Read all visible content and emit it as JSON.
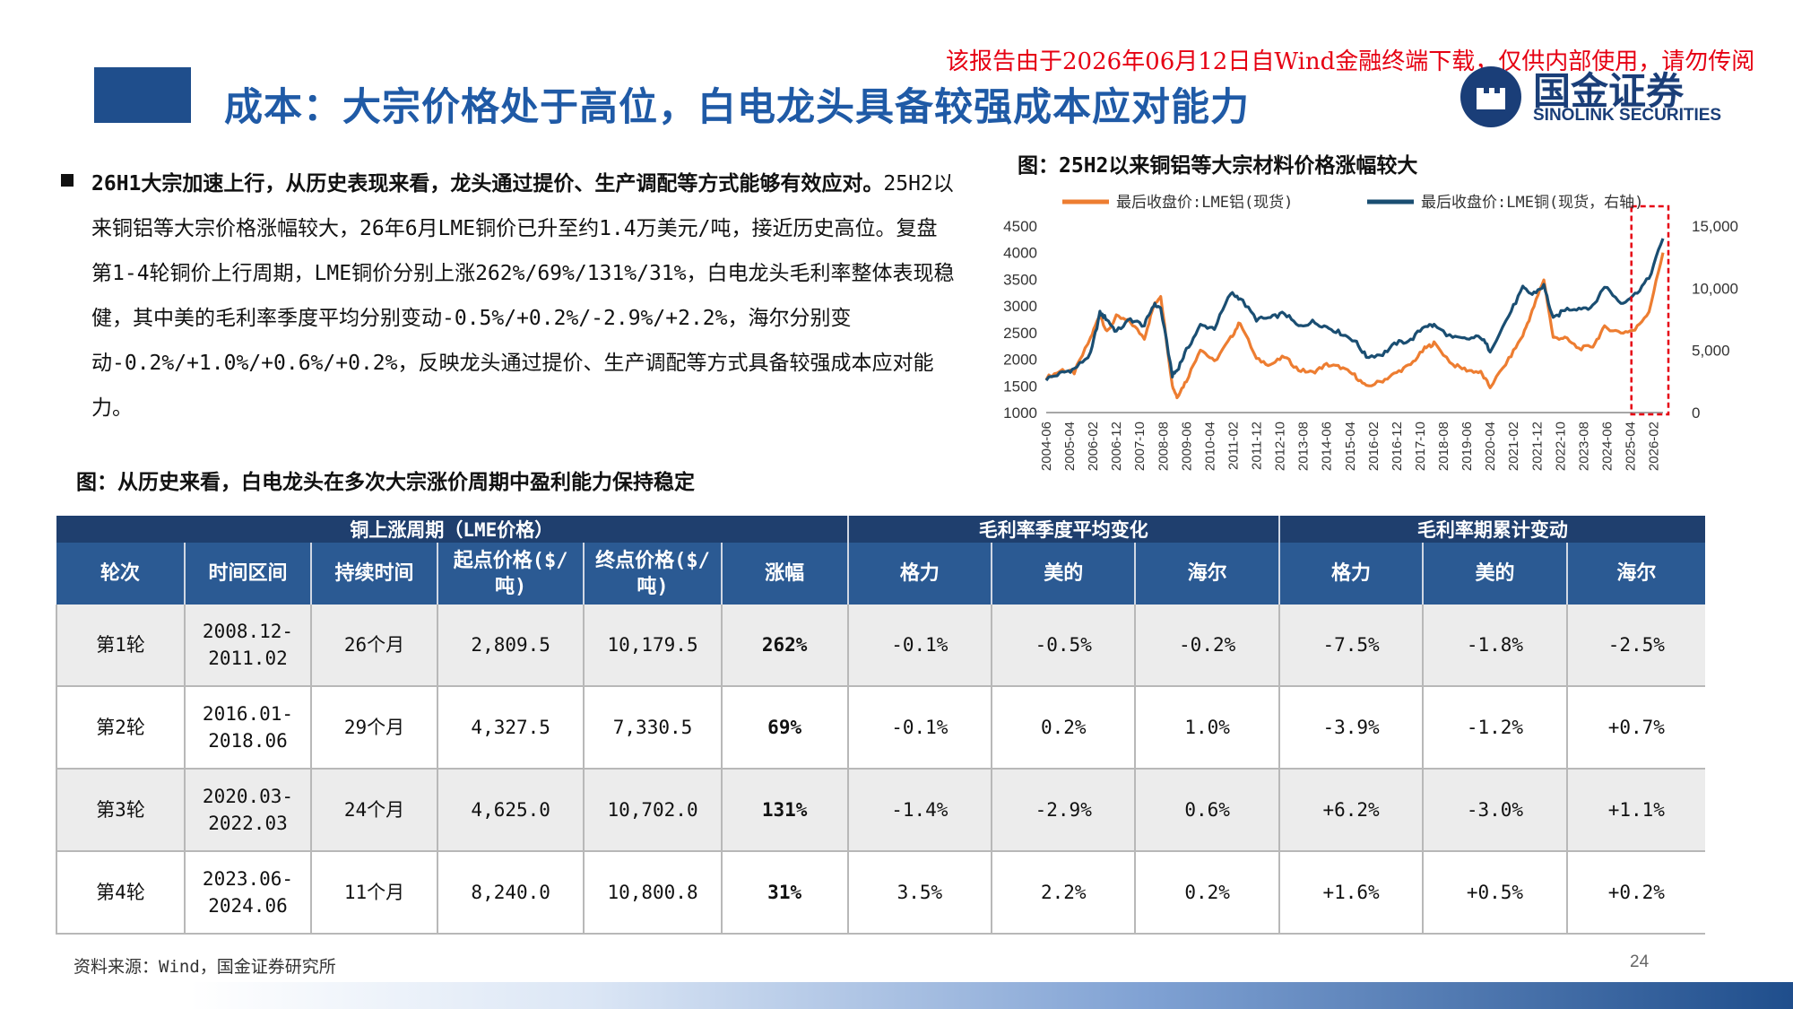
{
  "header": {
    "title": "成本：大宗价格处于高位，白电龙头具备较强成本应对能力",
    "watermark": "该报告由于2026年06月12日自Wind金融终端下载，仅供内部使用，请勿传阅",
    "logo_name": "国金证券",
    "logo_sub": "SINOLINK SECURITIES"
  },
  "bullet": {
    "lead": "26H1大宗加速上行，从历史表现来看，龙头通过提价、生产调配等方式能够有效应对。",
    "body": "25H2以来铜铝等大宗价格涨幅较大，26年6月LME铜价已升至约1.4万美元/吨，接近历史高位。复盘第1-4轮铜价上行周期，LME铜价分别上涨262%/69%/131%/31%，白电龙头毛利率整体表现稳健，其中美的毛利率季度平均分别变动-0.5%/+0.2%/-2.9%/+2.2%，海尔分别变动-0.2%/+1.0%/+0.6%/+0.2%，反映龙头通过提价、生产调配等方式具备较强成本应对能力。"
  },
  "chart_title": "图：25H2以来铜铝等大宗材料价格涨幅较大",
  "table_title": "图：从历史来看，白电龙头在多次大宗涨价周期中盈利能力保持稳定",
  "chart_data": {
    "type": "line",
    "title": "图：25H2以来铜铝等大宗材料价格涨幅较大",
    "series": [
      {
        "name": "最后收盘价:LME铝(现货)",
        "color": "#ed7d31",
        "axis": "left",
        "x": [
          "2004-06",
          "2005-01",
          "2005-06",
          "2006-01",
          "2006-05",
          "2006-08",
          "2006-12",
          "2007-06",
          "2007-12",
          "2008-04",
          "2008-07",
          "2008-12",
          "2009-02",
          "2009-06",
          "2009-12",
          "2010-06",
          "2011-01",
          "2011-05",
          "2011-12",
          "2012-06",
          "2012-12",
          "2013-06",
          "2013-12",
          "2014-06",
          "2014-12",
          "2015-06",
          "2015-11",
          "2016-06",
          "2016-12",
          "2017-06",
          "2017-12",
          "2018-04",
          "2018-12",
          "2019-06",
          "2019-12",
          "2020-04",
          "2020-12",
          "2021-06",
          "2021-10",
          "2022-03",
          "2022-07",
          "2022-12",
          "2023-06",
          "2023-12",
          "2024-05",
          "2024-12",
          "2025-06",
          "2025-12",
          "2026-06"
        ],
        "values": [
          1650,
          1800,
          1750,
          2400,
          2850,
          2500,
          2800,
          2700,
          2400,
          3000,
          3200,
          1500,
          1300,
          1600,
          2200,
          1950,
          2400,
          2700,
          2000,
          1900,
          2050,
          1800,
          1750,
          1900,
          1850,
          1700,
          1480,
          1600,
          1750,
          1900,
          2200,
          2300,
          1900,
          1800,
          1750,
          1480,
          2000,
          2450,
          2900,
          3500,
          2400,
          2400,
          2200,
          2250,
          2600,
          2500,
          2550,
          2900,
          4000
        ]
      },
      {
        "name": "最后收盘价:LME铜(现货，右轴)",
        "color": "#1a4e72",
        "axis": "right",
        "x": [
          "2004-06",
          "2005-01",
          "2005-06",
          "2006-01",
          "2006-05",
          "2006-08",
          "2006-12",
          "2007-06",
          "2007-12",
          "2008-04",
          "2008-07",
          "2008-12",
          "2009-02",
          "2009-06",
          "2009-12",
          "2010-06",
          "2011-01",
          "2011-05",
          "2011-12",
          "2012-06",
          "2012-12",
          "2013-06",
          "2013-12",
          "2014-06",
          "2014-12",
          "2015-06",
          "2015-11",
          "2016-06",
          "2016-12",
          "2017-06",
          "2017-12",
          "2018-04",
          "2018-12",
          "2019-06",
          "2019-12",
          "2020-04",
          "2020-12",
          "2021-06",
          "2021-10",
          "2022-03",
          "2022-07",
          "2022-12",
          "2023-06",
          "2023-12",
          "2024-05",
          "2024-12",
          "2025-06",
          "2025-12",
          "2026-06"
        ],
        "values": [
          2700,
          3200,
          3500,
          4700,
          8000,
          7500,
          6500,
          7500,
          7000,
          8700,
          8400,
          3000,
          3400,
          5000,
          7000,
          6800,
          9600,
          9200,
          7500,
          7600,
          8000,
          6900,
          7300,
          6900,
          6400,
          5800,
          4500,
          4700,
          5600,
          5800,
          7000,
          7000,
          6000,
          5900,
          6100,
          5000,
          7800,
          10000,
          9500,
          10200,
          7500,
          8300,
          8400,
          8500,
          10200,
          8800,
          9500,
          10800,
          14000
        ]
      }
    ],
    "y_left_ticks": [
      "4500",
      "4000",
      "3500",
      "3000",
      "2500",
      "2000",
      "1500",
      "1000"
    ],
    "y_right_ticks": [
      "15,000",
      "10,000",
      "5,000",
      "0"
    ],
    "x_ticks": [
      "2004-06",
      "2005-04",
      "2006-02",
      "2006-12",
      "2007-10",
      "2008-08",
      "2009-06",
      "2010-04",
      "2011-02",
      "2011-12",
      "2012-10",
      "2013-08",
      "2014-06",
      "2015-04",
      "2016-02",
      "2016-12",
      "2017-10",
      "2018-08",
      "2019-06",
      "2020-04",
      "2021-02",
      "2021-12",
      "2022-10",
      "2023-08",
      "2024-06",
      "2025-04",
      "2026-02"
    ],
    "ylim_left": [
      1000,
      4500
    ],
    "ylim_right": [
      0,
      15000
    ],
    "highlight": {
      "from": "2025-06",
      "to": "2026-06",
      "color": "#e60012",
      "style": "dashed"
    },
    "legend_position": "top"
  },
  "table": {
    "group_headers": [
      "铜上涨周期（LME价格）",
      "毛利率季度平均变化",
      "毛利率期累计变动"
    ],
    "columns": [
      "轮次",
      "时间区间",
      "持续时间",
      "起点价格($/吨)",
      "终点价格($/吨)",
      "涨幅",
      "格力",
      "美的",
      "海尔",
      "格力",
      "美的",
      "海尔"
    ],
    "rows": [
      [
        "第1轮",
        "2008.12-2011.02",
        "26个月",
        "2,809.5",
        "10,179.5",
        "262%",
        "-0.1%",
        "-0.5%",
        "-0.2%",
        "-7.5%",
        "-1.8%",
        "-2.5%"
      ],
      [
        "第2轮",
        "2016.01-2018.06",
        "29个月",
        "4,327.5",
        "7,330.5",
        "69%",
        "-0.1%",
        "0.2%",
        "1.0%",
        "-3.9%",
        "-1.2%",
        "+0.7%"
      ],
      [
        "第3轮",
        "2020.03-2022.03",
        "24个月",
        "4,625.0",
        "10,702.0",
        "131%",
        "-1.4%",
        "-2.9%",
        "0.6%",
        "+6.2%",
        "-3.0%",
        "+1.1%"
      ],
      [
        "第4轮",
        "2023.06-2024.06",
        "11个月",
        "8,240.0",
        "10,800.8",
        "31%",
        "3.5%",
        "2.2%",
        "0.2%",
        "+1.6%",
        "+0.5%",
        "+0.2%"
      ]
    ]
  },
  "footer": {
    "source": "资料来源：Wind，国金证券研究所",
    "page": "24"
  }
}
